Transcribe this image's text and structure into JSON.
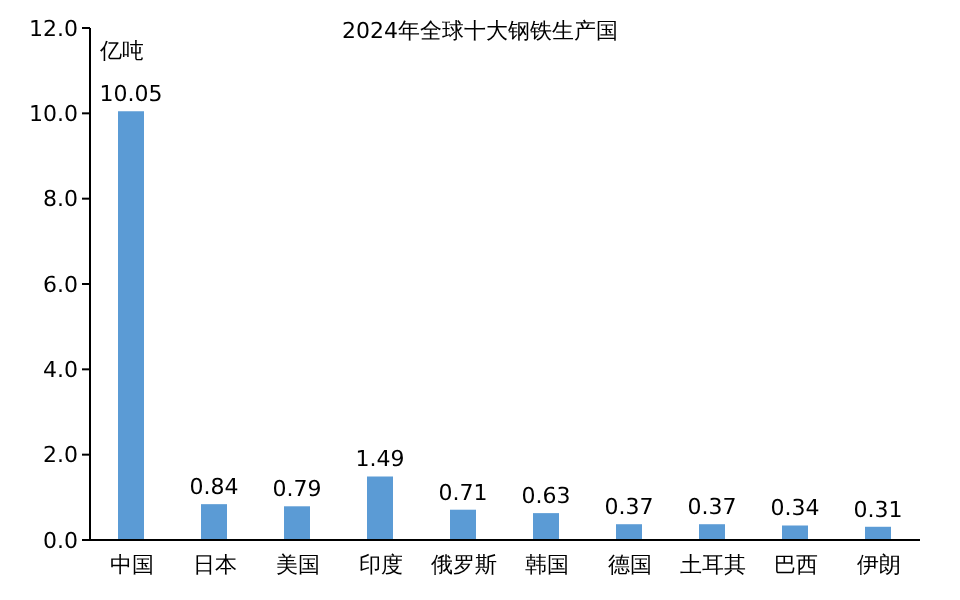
{
  "chart_data": {
    "type": "bar",
    "title": "2024年全球十大钢铁生产国",
    "ylabel": "亿吨",
    "categories": [
      "中国",
      "日本",
      "美国",
      "印度",
      "俄罗斯",
      "韩国",
      "德国",
      "土耳其",
      "巴西",
      "伊朗"
    ],
    "values": [
      10.05,
      0.84,
      0.79,
      1.49,
      0.71,
      0.63,
      0.37,
      0.37,
      0.34,
      0.31
    ],
    "color": "#5b9bd5",
    "ylim": [
      0,
      12
    ],
    "yticks": [
      {
        "value": 0,
        "label": "0.0"
      },
      {
        "value": 2,
        "label": "2.0"
      },
      {
        "value": 4,
        "label": "4.0"
      },
      {
        "value": 6,
        "label": "6.0"
      },
      {
        "value": 8,
        "label": "8.0"
      },
      {
        "value": 10,
        "label": "10.0"
      },
      {
        "value": 12,
        "label": "12.0"
      }
    ],
    "data_labels": true
  }
}
